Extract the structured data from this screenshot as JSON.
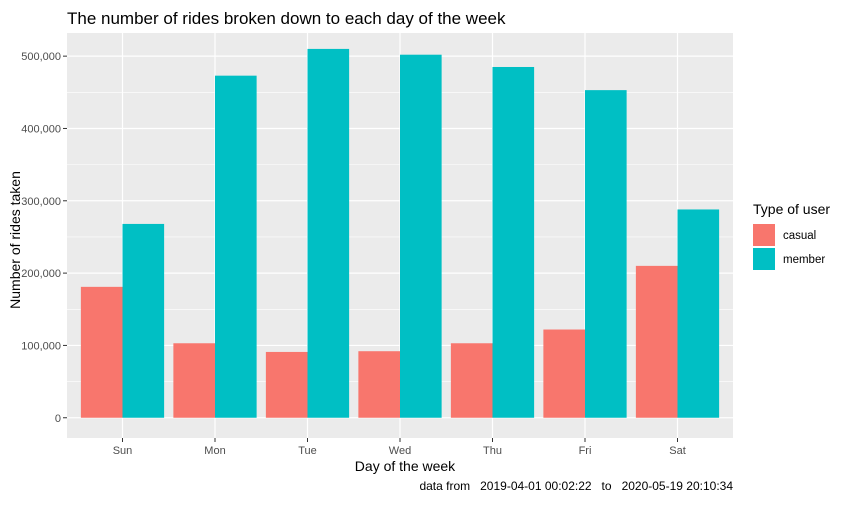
{
  "chart_data": {
    "type": "bar",
    "title": "The number of rides broken down to each day of the week",
    "xlabel": "Day of the week",
    "ylabel": "Number of rides taken",
    "categories": [
      "Sun",
      "Mon",
      "Tue",
      "Wed",
      "Thu",
      "Fri",
      "Sat"
    ],
    "series": [
      {
        "name": "casual",
        "color": "#F8766D",
        "values": [
          181000,
          103000,
          91000,
          92000,
          103000,
          122000,
          210000
        ]
      },
      {
        "name": "member",
        "color": "#00BFC4",
        "values": [
          268000,
          473000,
          510000,
          502000,
          485000,
          453000,
          288000
        ]
      }
    ],
    "ylim": [
      -28000,
      532000
    ],
    "y_ticks": [
      0,
      100000,
      200000,
      300000,
      400000,
      500000
    ],
    "y_tick_labels": [
      "0",
      "100,000",
      "200,000",
      "300,000",
      "400,000",
      "500,000"
    ],
    "legend": {
      "title": "Type of user",
      "position": "right"
    },
    "grid": true,
    "caption": "data from   2019-04-01 00:02:22   to   2020-05-19 20:10:34"
  }
}
